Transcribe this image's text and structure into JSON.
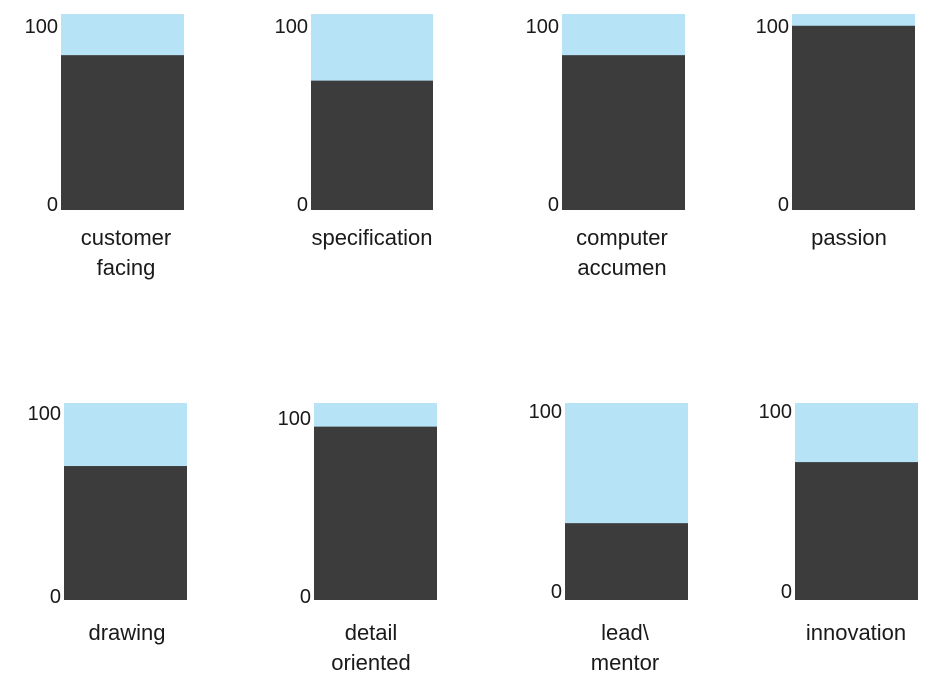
{
  "chart_data": {
    "type": "bar",
    "colors": {
      "fill": "#3c3c3c",
      "remainder": "#b7e3f6"
    },
    "ylim": [
      0,
      100
    ],
    "yticks": [
      "0",
      "100"
    ],
    "panels": [
      {
        "label": [
          "customer",
          "facing"
        ],
        "value": 79
      },
      {
        "label": [
          "specification"
        ],
        "value": 66
      },
      {
        "label": [
          "computer",
          "accumen"
        ],
        "value": 79
      },
      {
        "label": [
          "passion"
        ],
        "value": 94
      },
      {
        "label": [
          "drawing"
        ],
        "value": 68
      },
      {
        "label": [
          "detail",
          "oriented"
        ],
        "value": 88
      },
      {
        "label": [
          "lead\\",
          "mentor"
        ],
        "value": 39
      },
      {
        "label": [
          "innovation"
        ],
        "value": 70
      }
    ]
  }
}
